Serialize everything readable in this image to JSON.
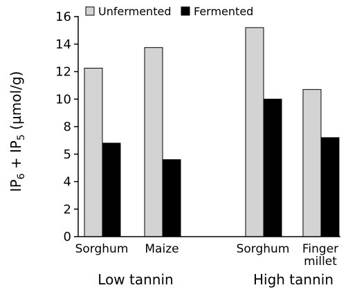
{
  "chart_data": {
    "type": "bar",
    "title": "",
    "ylabel_parts": {
      "main": "IP",
      "sub1": "6",
      "mid": " + IP",
      "sub2": "5",
      "unit": " (µmol/g)"
    },
    "ylim": [
      0,
      16
    ],
    "yticks": [
      {
        "value": 0,
        "label": "0"
      },
      {
        "value": 2,
        "label": "2"
      },
      {
        "value": 4,
        "label": "4"
      },
      {
        "value": 5,
        "label": "5"
      },
      {
        "value": 8,
        "label": "8"
      },
      {
        "value": 10,
        "label": "10"
      },
      {
        "value": 12,
        "label": "12"
      },
      {
        "value": 14,
        "label": "14"
      },
      {
        "value": 16,
        "label": "16"
      }
    ],
    "categories": [
      "Sorghum",
      "Maize",
      "Sorghum",
      "Finger millet"
    ],
    "category_label_lines": [
      [
        "Sorghum"
      ],
      [
        "Maize"
      ],
      [
        "Sorghum"
      ],
      [
        "Finger",
        "millet"
      ]
    ],
    "groups": [
      {
        "label": "Low tannin",
        "category_indices": [
          0,
          1
        ]
      },
      {
        "label": "High tannin",
        "category_indices": [
          2,
          3
        ]
      }
    ],
    "series": [
      {
        "name": "Unfermented",
        "color": "#d3d3d3",
        "values": [
          12.25,
          13.75,
          15.2,
          10.7
        ]
      },
      {
        "name": "Fermented",
        "color": "#000000",
        "values": [
          6.8,
          5.6,
          10.0,
          7.2
        ]
      }
    ],
    "legend_position": "top",
    "grid": false
  }
}
